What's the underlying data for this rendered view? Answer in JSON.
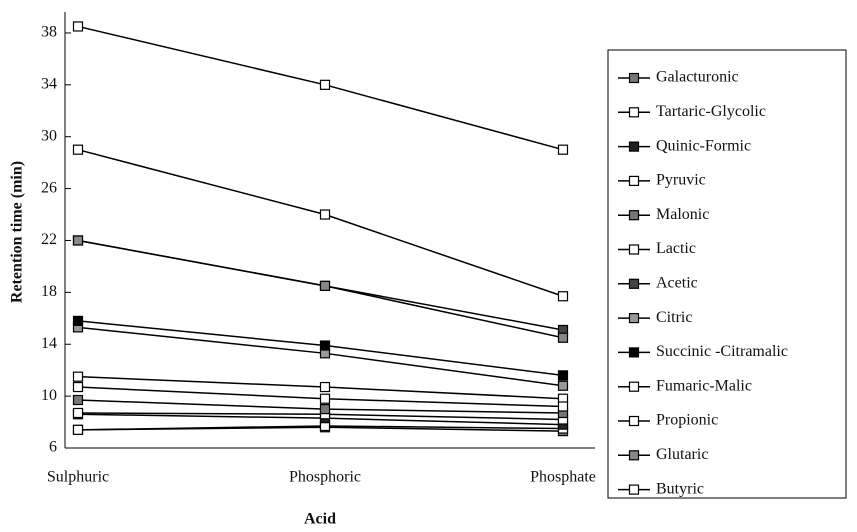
{
  "chart_data": {
    "type": "line",
    "x_label": "Acid",
    "y_label": "Retention time (min)",
    "categories": [
      "Sulphuric",
      "Phosphoric",
      "Phosphate"
    ],
    "ylim": [
      6,
      40
    ],
    "yticks": [
      6,
      10,
      14,
      18,
      22,
      26,
      30,
      34,
      38
    ],
    "grid": false,
    "legend": "right",
    "series": [
      {
        "name": "Galacturonic",
        "color": "#000000",
        "marker_fill": "#777777",
        "values": [
          7.4,
          7.6,
          7.3
        ]
      },
      {
        "name": "Tartaric-Glycolic",
        "color": "#000000",
        "marker_fill": "#ffffff",
        "values": [
          7.4,
          7.7,
          7.5
        ]
      },
      {
        "name": "Quinic-Formic",
        "color": "#000000",
        "marker_fill": "#222222",
        "values": [
          8.6,
          8.3,
          7.8
        ]
      },
      {
        "name": "Pyruvic",
        "color": "#000000",
        "marker_fill": "#ffffff",
        "values": [
          8.7,
          8.6,
          8.2
        ]
      },
      {
        "name": "Malonic",
        "color": "#000000",
        "marker_fill": "#777777",
        "values": [
          9.7,
          9.0,
          8.7
        ]
      },
      {
        "name": "Lactic",
        "color": "#000000",
        "marker_fill": "#ffffff",
        "values": [
          11.5,
          10.7,
          9.8
        ]
      },
      {
        "name": "Acetic",
        "color": "#000000",
        "marker_fill": "#444444",
        "values": [
          22,
          18.5,
          15.1
        ]
      },
      {
        "name": "Citric",
        "color": "#000000",
        "marker_fill": "#999999",
        "values": [
          15.3,
          13.3,
          10.8
        ]
      },
      {
        "name": "Succinic -Citramalic",
        "color": "#000000",
        "marker_fill": "#000000",
        "values": [
          15.8,
          13.9,
          11.6
        ]
      },
      {
        "name": "Fumaric-Malic",
        "color": "#000000",
        "marker_fill": "#ffffff",
        "values": [
          10.7,
          9.8,
          9.2
        ]
      },
      {
        "name": "Propionic",
        "color": "#000000",
        "marker_fill": "#ffffff",
        "values": [
          29,
          24,
          17.7
        ]
      },
      {
        "name": "Glutaric",
        "color": "#000000",
        "marker_fill": "#888888",
        "values": [
          22,
          18.5,
          14.5
        ]
      },
      {
        "name": "Butyric",
        "color": "#000000",
        "marker_fill": "#ffffff",
        "values": [
          38.5,
          34,
          29
        ]
      }
    ]
  }
}
